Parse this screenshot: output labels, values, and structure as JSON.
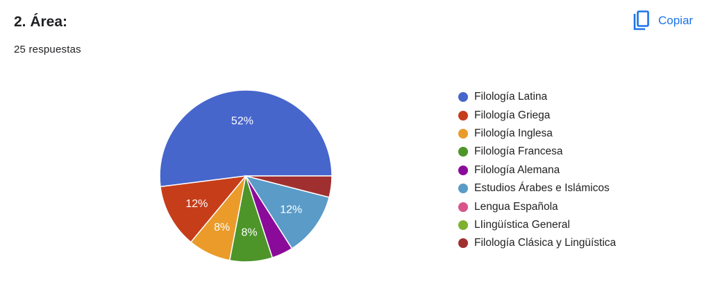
{
  "header": {
    "title": "2. Área:",
    "responses": "25 respuestas",
    "copy_label": "Copiar",
    "copy_icon": "copy-icon"
  },
  "chart_data": {
    "type": "pie",
    "labels": [
      "Filología Latina",
      "Filología Griega",
      "Filología Inglesa",
      "Filología Francesa",
      "Filología Alemana",
      "Estudios Árabes e Islámicos",
      "Lengua Española",
      "LIingüística General",
      "Filología Clásica y Lingüística"
    ],
    "values": [
      52,
      12,
      8,
      8,
      4,
      12,
      0,
      0,
      4
    ],
    "slice_labels": [
      "52%",
      "12%",
      "8%",
      "8%",
      "",
      "12%",
      "",
      "",
      ""
    ],
    "colors": [
      "#4766CC",
      "#C63D1A",
      "#EA9B2A",
      "#4D9529",
      "#8A0B99",
      "#5A9BC7",
      "#D8558A",
      "#7EB12E",
      "#A03030"
    ],
    "legend_position": "right"
  }
}
